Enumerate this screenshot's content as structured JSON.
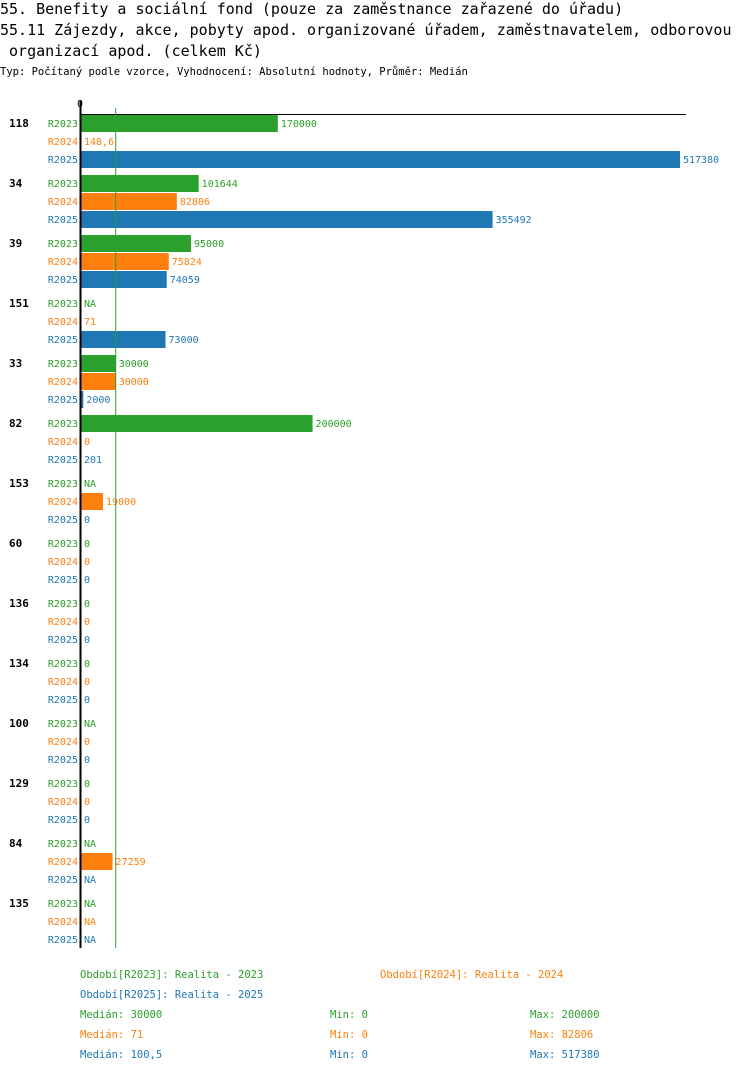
{
  "header": {
    "title_line1": "55. Benefity a sociální fond (pouze za zaměstnance zařazené do úřadu)",
    "title_line2": "55.11 Zájezdy, akce, pobyty apod. organizované úřadem, zaměstnavatelem, odborovou",
    "title_line3": " organizací apod. (celkem Kč)",
    "subtitle": "Typ: Počítaný podle vzorce, Vyhodnocení: Absolutní hodnoty, Průměr: Medián"
  },
  "colors": {
    "R2023": "#2ca02c",
    "R2024": "#ff7f0e",
    "R2025": "#1f77b4",
    "axis": "#000000",
    "median": "#2ca02c"
  },
  "chart_data": {
    "type": "bar",
    "orientation": "horizontal",
    "axis_zero_label": "0",
    "xlim": [
      0,
      517380
    ],
    "median_line_value": 30000,
    "series_names": [
      "R2023",
      "R2024",
      "R2025"
    ],
    "groups": [
      {
        "label": "118",
        "values": [
          {
            "v": 170000,
            "t": "170000"
          },
          {
            "v": 148.6,
            "t": "148,6"
          },
          {
            "v": 517380,
            "t": "517380"
          }
        ]
      },
      {
        "label": "34",
        "values": [
          {
            "v": 101644,
            "t": "101644"
          },
          {
            "v": 82806,
            "t": "82806"
          },
          {
            "v": 355492,
            "t": "355492"
          }
        ]
      },
      {
        "label": "39",
        "values": [
          {
            "v": 95000,
            "t": "95000"
          },
          {
            "v": 75824,
            "t": "75824"
          },
          {
            "v": 74059,
            "t": "74059"
          }
        ]
      },
      {
        "label": "151",
        "values": [
          {
            "v": null,
            "t": "NA"
          },
          {
            "v": 71,
            "t": "71"
          },
          {
            "v": 73000,
            "t": "73000"
          }
        ]
      },
      {
        "label": "33",
        "values": [
          {
            "v": 30000,
            "t": "30000"
          },
          {
            "v": 30000,
            "t": "30000"
          },
          {
            "v": 2000,
            "t": "2000"
          }
        ]
      },
      {
        "label": "82",
        "values": [
          {
            "v": 200000,
            "t": "200000"
          },
          {
            "v": 0,
            "t": "0"
          },
          {
            "v": 201,
            "t": "201"
          }
        ]
      },
      {
        "label": "153",
        "values": [
          {
            "v": null,
            "t": "NA"
          },
          {
            "v": 19000,
            "t": "19000"
          },
          {
            "v": 0,
            "t": "0"
          }
        ]
      },
      {
        "label": "60",
        "values": [
          {
            "v": 0,
            "t": "0"
          },
          {
            "v": 0,
            "t": "0"
          },
          {
            "v": 0,
            "t": "0"
          }
        ]
      },
      {
        "label": "136",
        "values": [
          {
            "v": 0,
            "t": "0"
          },
          {
            "v": 0,
            "t": "0"
          },
          {
            "v": 0,
            "t": "0"
          }
        ]
      },
      {
        "label": "134",
        "values": [
          {
            "v": 0,
            "t": "0"
          },
          {
            "v": 0,
            "t": "0"
          },
          {
            "v": 0,
            "t": "0"
          }
        ]
      },
      {
        "label": "100",
        "values": [
          {
            "v": null,
            "t": "NA"
          },
          {
            "v": 0,
            "t": "0"
          },
          {
            "v": 0,
            "t": "0"
          }
        ]
      },
      {
        "label": "129",
        "values": [
          {
            "v": 0,
            "t": "0"
          },
          {
            "v": 0,
            "t": "0"
          },
          {
            "v": 0,
            "t": "0"
          }
        ]
      },
      {
        "label": "84",
        "values": [
          {
            "v": null,
            "t": "NA"
          },
          {
            "v": 27259,
            "t": "27259"
          },
          {
            "v": null,
            "t": "NA"
          }
        ]
      },
      {
        "label": "135",
        "values": [
          {
            "v": null,
            "t": "NA"
          },
          {
            "v": null,
            "t": "NA"
          },
          {
            "v": null,
            "t": "NA"
          }
        ]
      }
    ]
  },
  "legend": {
    "period_2023": "Období[R2023]: Realita - 2023",
    "period_2024": "Období[R2024]: Realita - 2024",
    "period_2025": "Období[R2025]: Realita - 2025",
    "stats": [
      {
        "median": "Medián: 30000",
        "min": "Min: 0",
        "max": "Max: 200000"
      },
      {
        "median": "Medián: 71",
        "min": "Min: 0",
        "max": "Max: 82806"
      },
      {
        "median": "Medián: 100,5",
        "min": "Min: 0",
        "max": "Max: 517380"
      }
    ]
  }
}
